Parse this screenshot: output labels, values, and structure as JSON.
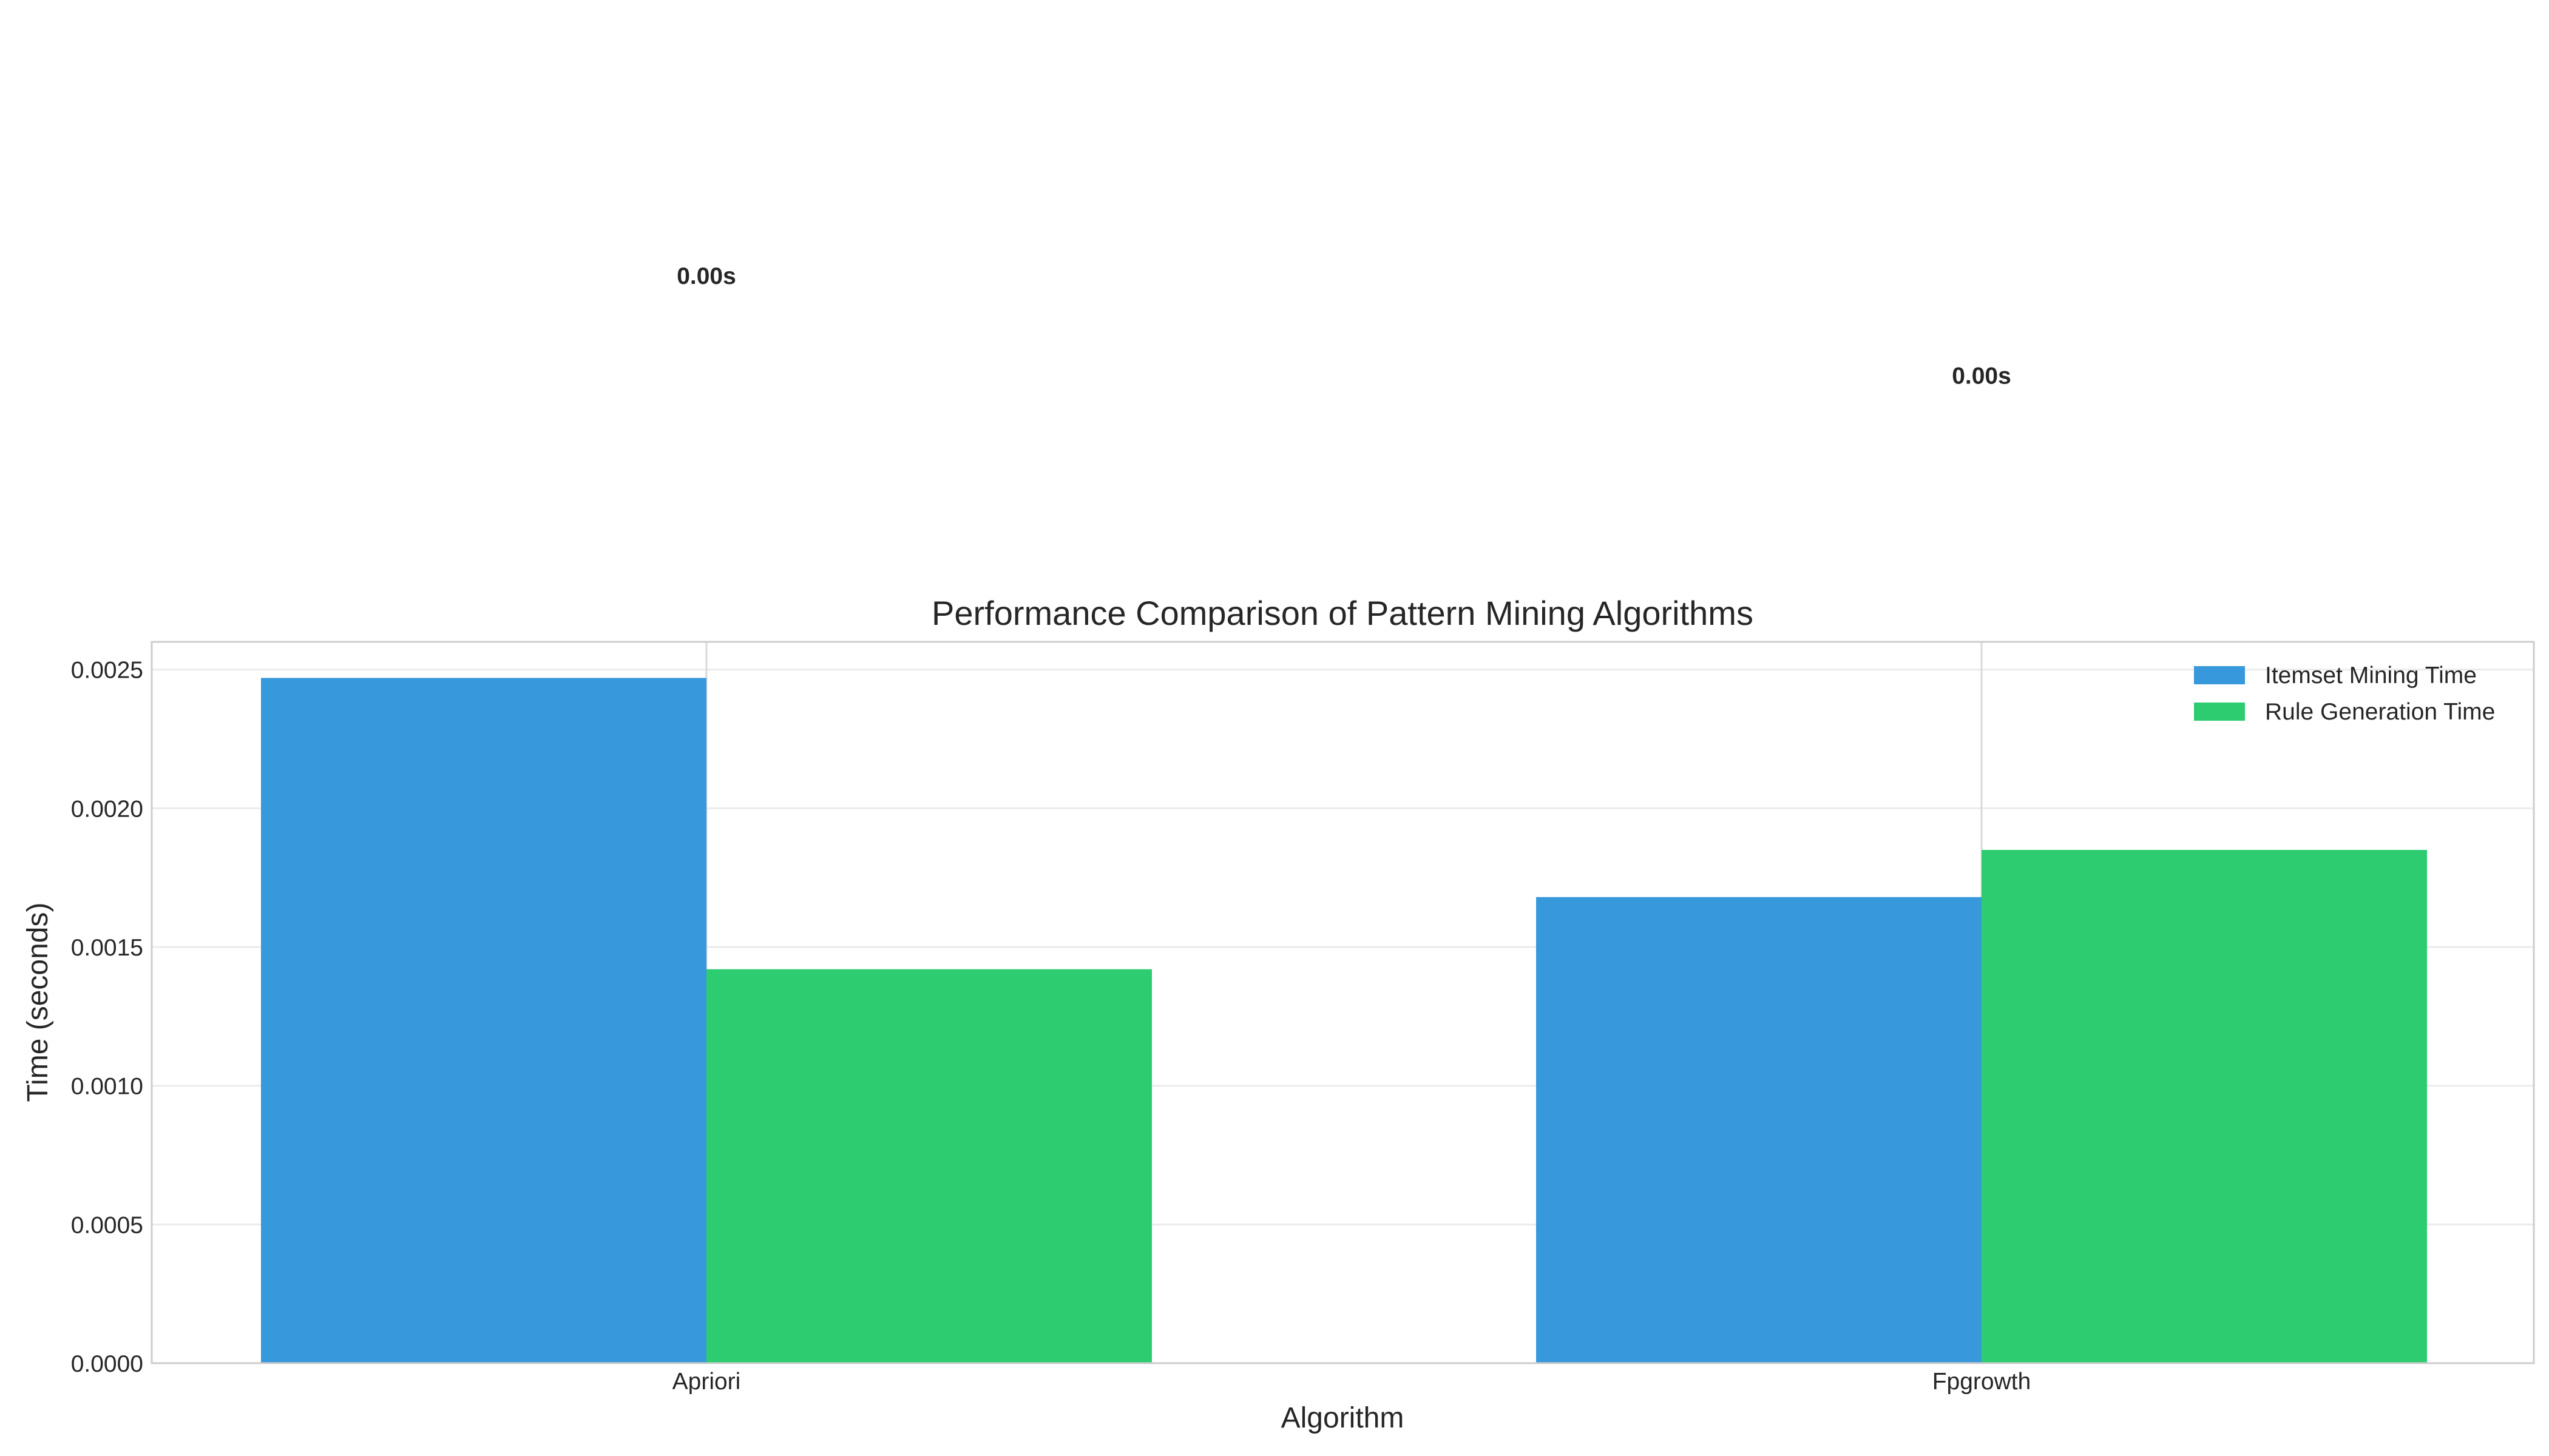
{
  "chart_data": {
    "type": "bar",
    "title": "Performance Comparison of Pattern Mining Algorithms",
    "xlabel": "Algorithm",
    "ylabel": "Time (seconds)",
    "categories": [
      "Apriori",
      "Fpgrowth"
    ],
    "series": [
      {
        "name": "Itemset Mining Time",
        "values": [
          0.00247,
          0.00168
        ],
        "color": "#3798db"
      },
      {
        "name": "Rule Generation Time",
        "values": [
          0.00142,
          0.00185
        ],
        "color": "#2ecc71"
      }
    ],
    "ylim": [
      0,
      0.0026
    ],
    "yticks": [
      "0.0000",
      "0.0005",
      "0.0010",
      "0.0015",
      "0.0020",
      "0.0025"
    ],
    "annotations": [
      {
        "category": "Apriori",
        "text": "0.00s",
        "value": 0.00389
      },
      {
        "category": "Fpgrowth",
        "text": "0.00s",
        "value": 0.00353
      }
    ],
    "grid": true,
    "legend_position": "top-right"
  }
}
